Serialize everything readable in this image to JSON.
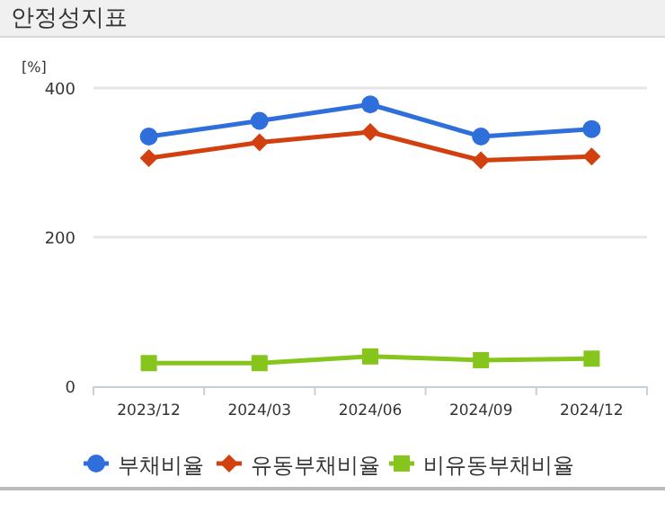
{
  "chart_data": {
    "type": "line",
    "title": "안정성지표",
    "ylabel": "[%]",
    "categories": [
      "2023/12",
      "2024/03",
      "2024/06",
      "2024/09",
      "2024/12"
    ],
    "series": [
      {
        "name": "부채비율",
        "color": "#2f6fdc",
        "marker": "circle",
        "values": [
          335,
          356,
          378,
          335,
          345
        ]
      },
      {
        "name": "유동부채비율",
        "color": "#d2400f",
        "marker": "diamond",
        "values": [
          306,
          327,
          341,
          303,
          308
        ]
      },
      {
        "name": "비유동부채비율",
        "color": "#86c51b",
        "marker": "square",
        "values": [
          31,
          31,
          40,
          35,
          37
        ]
      }
    ],
    "ylim": [
      0,
      400
    ],
    "yticks": [
      0,
      200,
      400
    ],
    "grid": "y",
    "legend": "bottom",
    "line_style": "solid"
  }
}
